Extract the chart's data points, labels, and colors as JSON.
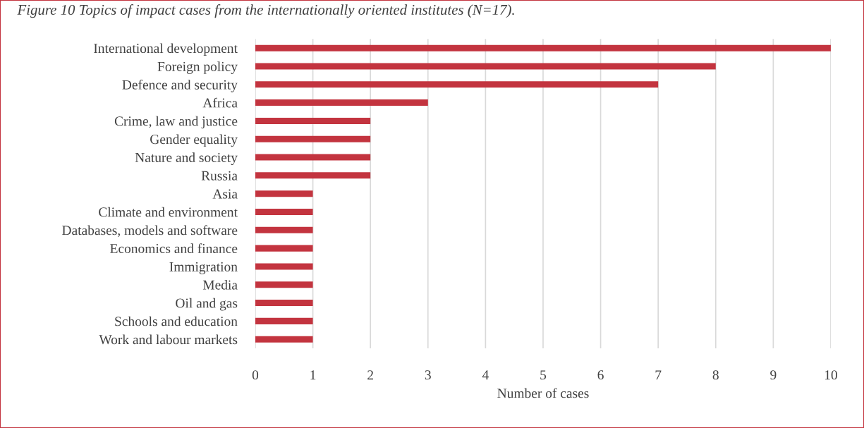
{
  "chart_data": {
    "type": "bar",
    "orientation": "horizontal",
    "title": "Figure 10 Topics of impact cases from the internationally oriented institutes (N=17).",
    "xlabel": "Number of cases",
    "categories": [
      "International development",
      "Foreign policy",
      "Defence and security",
      "Africa",
      "Crime, law and justice",
      "Gender equality",
      "Nature and society",
      "Russia",
      "Asia",
      "Climate and environment",
      "Databases, models and software",
      "Economics and finance",
      "Immigration",
      "Media",
      "Oil and gas",
      "Schools and education",
      "Work and labour markets"
    ],
    "values": [
      10,
      8,
      7,
      3,
      2,
      2,
      2,
      2,
      1,
      1,
      1,
      1,
      1,
      1,
      1,
      1,
      1
    ],
    "color": "#c3343f",
    "xlim": [
      0,
      10
    ],
    "xticks": [
      0,
      1,
      2,
      3,
      4,
      5,
      6,
      7,
      8,
      9,
      10
    ],
    "grid": "x",
    "legend": false
  }
}
